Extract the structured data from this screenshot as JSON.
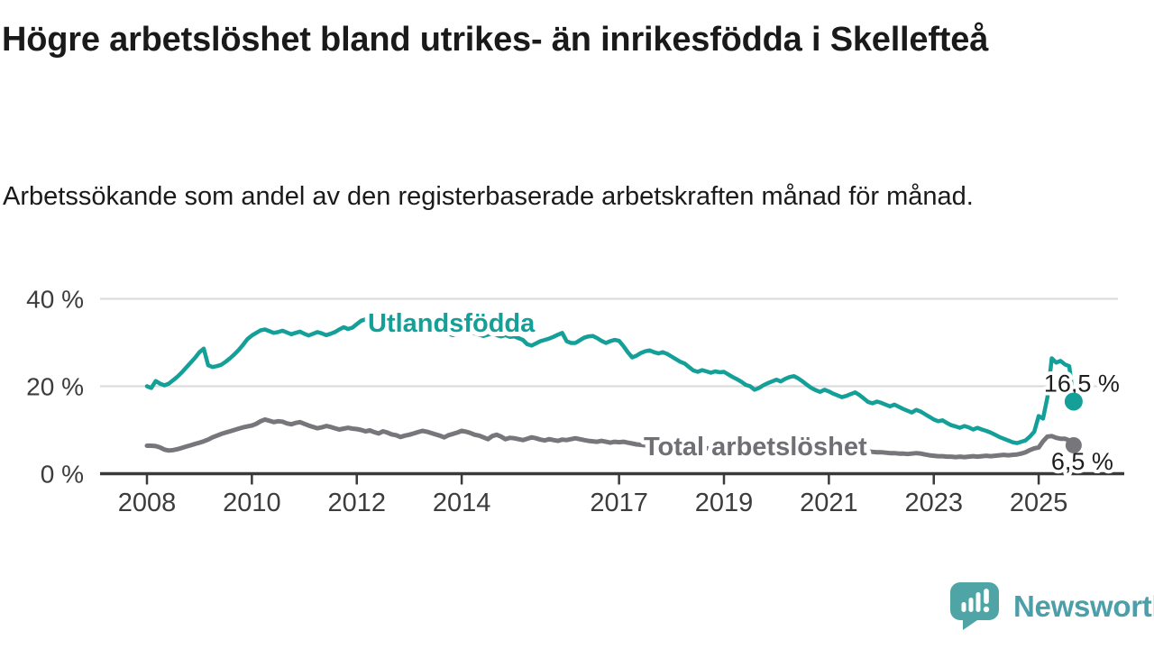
{
  "header": {
    "title": "Högre arbetslöshet bland utrikes- än inrikesfödda i Skellefteå",
    "subtitle": "Arbetssökande som andel av den registerbaserade arbetskraften månad för månad."
  },
  "footer": {
    "brand": "Newsworthy",
    "brand_color": "#4B9FA8",
    "icon": "newsworthy-speech-bubble-bar-chart-icon",
    "icon_color": "#4FA5A6"
  },
  "chart_data": {
    "type": "line",
    "title": "Högre arbetslöshet bland utrikes- än inrikesfödda i Skellefteå",
    "subtitle": "Arbetssökande som andel av den registerbaserade arbetskraften månad för månad.",
    "x_start": {
      "year": 2008,
      "month": 1
    },
    "x_interval": "monthly",
    "x_range": [
      "2008-01",
      "2025-09"
    ],
    "ylim": [
      0,
      42
    ],
    "grid": "horizontal",
    "y_ticks": [
      {
        "value": 0,
        "label": "0 %"
      },
      {
        "value": 20,
        "label": "20 %"
      },
      {
        "value": 40,
        "label": "40 %"
      }
    ],
    "x_ticks": [
      {
        "year": 2008,
        "label": "2008"
      },
      {
        "year": 2010,
        "label": "2010"
      },
      {
        "year": 2012,
        "label": "2012"
      },
      {
        "year": 2014,
        "label": "2014"
      },
      {
        "year": 2017,
        "label": "2017"
      },
      {
        "year": 2019,
        "label": "2019"
      },
      {
        "year": 2021,
        "label": "2021"
      },
      {
        "year": 2023,
        "label": "2023"
      },
      {
        "year": 2025,
        "label": "2025"
      }
    ],
    "series": [
      {
        "id": "utlandsfodda",
        "name": "Utlandsfödda",
        "color": "#14A098",
        "label_color": "#14A098",
        "end_label": "16,5 %",
        "last_value": 16.5,
        "values": [
          20.0,
          19.6,
          21.2,
          20.6,
          20.2,
          20.6,
          21.4,
          22.2,
          23.2,
          24.3,
          25.4,
          26.5,
          27.8,
          28.6,
          24.8,
          24.4,
          24.6,
          24.9,
          25.6,
          26.4,
          27.3,
          28.3,
          29.5,
          30.8,
          31.6,
          32.2,
          32.8,
          33.0,
          32.6,
          32.2,
          32.4,
          32.7,
          32.3,
          31.9,
          32.2,
          32.5,
          32.0,
          31.6,
          32.0,
          32.4,
          32.1,
          31.7,
          32.0,
          32.4,
          33.0,
          33.5,
          33.1,
          33.4,
          34.2,
          35.0,
          35.3,
          34.9,
          34.5,
          34.2,
          33.9,
          34.1,
          33.7,
          33.4,
          33.6,
          33.2,
          33.0,
          32.7,
          32.9,
          32.6,
          32.3,
          32.5,
          32.1,
          31.9,
          32.2,
          32.0,
          31.7,
          32.0,
          32.3,
          32.0,
          32.4,
          32.1,
          31.8,
          31.5,
          31.8,
          32.1,
          31.7,
          31.4,
          31.7,
          31.3,
          31.4,
          31.0,
          30.6,
          29.6,
          29.3,
          29.8,
          30.3,
          30.6,
          30.9,
          31.3,
          31.8,
          32.2,
          30.3,
          29.9,
          29.9,
          30.5,
          31.1,
          31.4,
          31.5,
          31.0,
          30.4,
          29.9,
          30.3,
          30.6,
          30.4,
          29.2,
          27.8,
          26.6,
          27.0,
          27.6,
          28.0,
          28.2,
          27.8,
          27.5,
          27.8,
          27.4,
          26.8,
          26.2,
          25.6,
          25.2,
          24.4,
          23.6,
          23.3,
          23.7,
          23.4,
          23.1,
          23.4,
          23.2,
          23.3,
          22.7,
          22.1,
          21.6,
          21.0,
          20.3,
          20.0,
          19.2,
          19.6,
          20.2,
          20.7,
          21.1,
          21.5,
          21.1,
          21.7,
          22.1,
          22.3,
          21.8,
          21.1,
          20.3,
          19.6,
          19.1,
          18.7,
          19.2,
          18.8,
          18.3,
          17.9,
          17.5,
          17.8,
          18.2,
          18.6,
          18.0,
          17.2,
          16.4,
          16.1,
          16.5,
          16.2,
          15.8,
          15.4,
          15.8,
          15.3,
          14.8,
          14.4,
          14.0,
          14.6,
          14.2,
          13.6,
          13.0,
          12.4,
          12.0,
          12.2,
          11.6,
          11.1,
          10.8,
          10.5,
          10.9,
          10.6,
          10.1,
          10.5,
          10.1,
          9.8,
          9.4,
          8.9,
          8.4,
          8.0,
          7.6,
          7.2,
          7.0,
          7.3,
          7.6,
          8.5,
          9.6,
          13.2,
          12.6,
          17.5,
          26.4,
          25.4,
          25.8,
          25.0,
          24.6,
          16.5
        ]
      },
      {
        "id": "total",
        "name": "Total arbetslöshet",
        "color": "#77777B",
        "label_color": "#6F6F74",
        "end_label": "6,5 %",
        "last_value": 6.5,
        "values": [
          6.4,
          6.4,
          6.3,
          6.0,
          5.5,
          5.3,
          5.4,
          5.6,
          5.9,
          6.2,
          6.5,
          6.8,
          7.1,
          7.4,
          7.8,
          8.3,
          8.7,
          9.1,
          9.4,
          9.7,
          10.0,
          10.3,
          10.6,
          10.8,
          11.0,
          11.4,
          12.0,
          12.4,
          12.1,
          11.8,
          12.0,
          11.9,
          11.5,
          11.3,
          11.6,
          11.8,
          11.4,
          11.0,
          10.7,
          10.4,
          10.6,
          10.9,
          10.7,
          10.4,
          10.1,
          10.3,
          10.5,
          10.3,
          10.2,
          10.0,
          9.7,
          9.9,
          9.5,
          9.2,
          9.7,
          9.4,
          9.0,
          8.8,
          8.4,
          8.7,
          8.9,
          9.2,
          9.5,
          9.8,
          9.6,
          9.3,
          9.0,
          8.7,
          8.3,
          8.8,
          9.1,
          9.4,
          9.8,
          9.6,
          9.3,
          8.9,
          8.7,
          8.3,
          7.9,
          8.6,
          8.9,
          8.5,
          7.9,
          8.2,
          8.1,
          7.9,
          7.7,
          8.0,
          8.3,
          8.1,
          7.8,
          7.6,
          7.9,
          7.7,
          7.5,
          7.8,
          7.7,
          7.9,
          8.1,
          7.9,
          7.7,
          7.5,
          7.4,
          7.3,
          7.5,
          7.3,
          7.1,
          7.3,
          7.2,
          7.3,
          7.1,
          6.9,
          6.7,
          6.6,
          6.5,
          6.4,
          6.4,
          6.3,
          6.3,
          6.2,
          6.2,
          6.1,
          6.1,
          6.0,
          5.9,
          5.9,
          5.8,
          5.9,
          5.8,
          5.8,
          5.9,
          6.0,
          6.0,
          5.9,
          5.8,
          5.8,
          5.9,
          6.0,
          6.1,
          6.0,
          6.1,
          6.2,
          6.3,
          6.4,
          6.5,
          6.6,
          6.9,
          7.3,
          7.4,
          7.3,
          7.2,
          7.1,
          7.0,
          6.8,
          6.6,
          6.5,
          6.4,
          6.2,
          6.0,
          5.8,
          5.6,
          5.5,
          5.4,
          5.3,
          5.2,
          5.1,
          5.0,
          4.9,
          4.9,
          4.8,
          4.7,
          4.7,
          4.6,
          4.6,
          4.5,
          4.6,
          4.7,
          4.6,
          4.4,
          4.2,
          4.1,
          4.0,
          4.0,
          3.9,
          3.9,
          3.8,
          3.9,
          3.8,
          3.9,
          4.0,
          3.9,
          4.0,
          4.1,
          4.0,
          4.1,
          4.2,
          4.3,
          4.2,
          4.3,
          4.4,
          4.6,
          4.9,
          5.4,
          5.8,
          6.0,
          7.4,
          8.5,
          8.6,
          8.2,
          8.0,
          8.0,
          7.6,
          6.5
        ]
      }
    ]
  }
}
